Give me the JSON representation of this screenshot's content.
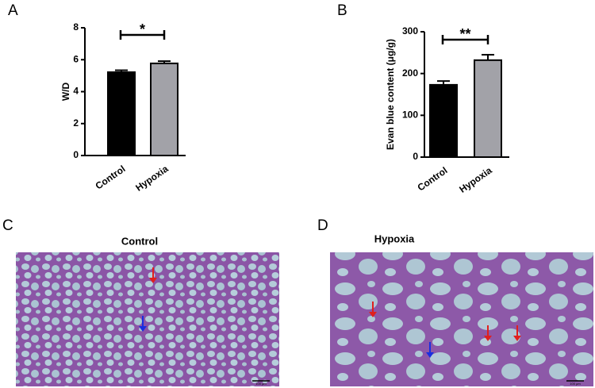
{
  "chart_data": [
    {
      "panel": "A",
      "type": "bar",
      "ylabel": "W/D",
      "categories": [
        "Control",
        "Hypoxia"
      ],
      "values": [
        5.22,
        5.77
      ],
      "errors": [
        0.12,
        0.14
      ],
      "colors": [
        "#000000",
        "#a2a2a8"
      ],
      "ylim": [
        0,
        8
      ],
      "yticks": [
        0,
        2,
        4,
        6,
        8
      ],
      "annotation": "*"
    },
    {
      "panel": "B",
      "type": "bar",
      "ylabel": "Evan blue content (μg/g)",
      "categories": [
        "Control",
        "Hypoxia"
      ],
      "values": [
        173,
        232
      ],
      "errors": [
        9,
        13
      ],
      "colors": [
        "#000000",
        "#a2a2a8"
      ],
      "ylim": [
        0,
        300
      ],
      "yticks": [
        0,
        100,
        200,
        300
      ],
      "annotation": "**"
    }
  ],
  "images": [
    {
      "panel": "C",
      "title": "Control",
      "scale_bar": "100 μm"
    },
    {
      "panel": "D",
      "title": "Hypoxia",
      "scale_bar": "100 μm"
    }
  ]
}
